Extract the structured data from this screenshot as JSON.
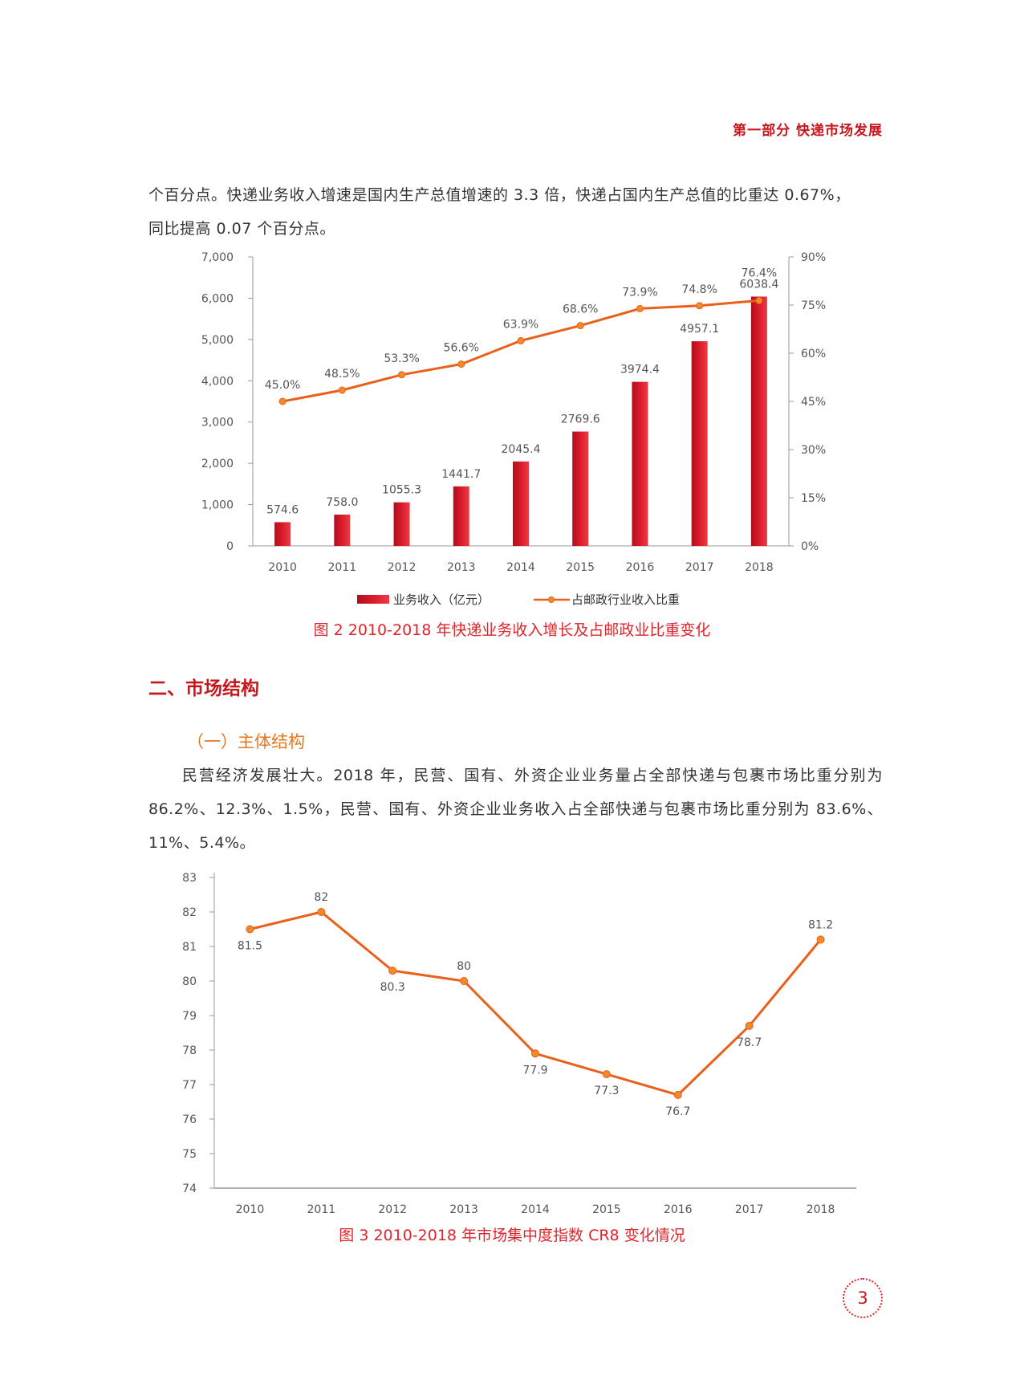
{
  "header": {
    "section": "第一部分  快递市场发展"
  },
  "intro_lines": [
    "个百分点。快递业务收入增速是国内生产总值增速的 3.3 倍，快递占国内生产总值的比重达 0.67%，",
    "同比提高 0.07 个百分点。"
  ],
  "figure2": {
    "caption": "图 2  2010-2018 年快递业务收入增长及占邮政业比重变化",
    "legend": {
      "bar": "业务收入（亿元）",
      "line": "占邮政行业收入比重"
    }
  },
  "section2": {
    "title": "二、市场结构",
    "subtitle": "（一）主体结构",
    "paragraph": "民营经济发展壮大。2018 年，民营、国有、外资企业业务量占全部快递与包裹市场比重分别为 86.2%、12.3%、1.5%，民营、国有、外资企业业务收入占全部快递与包裹市场比重分别为 83.6%、11%、5.4%。"
  },
  "figure3": {
    "caption": "图 3  2010-2018 年市场集中度指数 CR8 变化情况"
  },
  "page_number": "3",
  "colors": {
    "accent_red": "#c8161d",
    "bar_red": "#d7192a",
    "line_orange": "#e8601a"
  },
  "chart_data": [
    {
      "type": "bar+line",
      "title": "",
      "categories": [
        "2010",
        "2011",
        "2012",
        "2013",
        "2014",
        "2015",
        "2016",
        "2017",
        "2018"
      ],
      "series": [
        {
          "name": "业务收入（亿元）",
          "kind": "bar",
          "axis": "left",
          "values": [
            574.6,
            758.0,
            1055.3,
            1441.7,
            2045.4,
            2769.6,
            3974.4,
            4957.1,
            6038.4
          ],
          "labels": [
            "574.6",
            "758.0",
            "1055.3",
            "1441.7",
            "2045.4",
            "2769.6",
            "3974.4",
            "4957.1",
            "6038.4"
          ]
        },
        {
          "name": "占邮政行业收入比重",
          "kind": "line",
          "axis": "right",
          "values": [
            45.0,
            48.5,
            53.3,
            56.6,
            63.9,
            68.6,
            73.9,
            74.8,
            76.4
          ],
          "labels": [
            "45.0%",
            "48.5%",
            "53.3%",
            "56.6%",
            "63.9%",
            "68.6%",
            "73.9%",
            "74.8%",
            "76.4%"
          ]
        }
      ],
      "y_left": {
        "min": 0,
        "max": 7000,
        "ticks": [
          "0",
          "1,000",
          "2,000",
          "3,000",
          "4,000",
          "5,000",
          "6,000",
          "7,000"
        ]
      },
      "y_right": {
        "min": 0,
        "max": 90,
        "ticks": [
          "0%",
          "15%",
          "30%",
          "45%",
          "60%",
          "75%",
          "90%"
        ]
      },
      "legend_position": "bottom"
    },
    {
      "type": "line",
      "title": "",
      "categories": [
        "2010",
        "2011",
        "2012",
        "2013",
        "2014",
        "2015",
        "2016",
        "2017",
        "2018"
      ],
      "series": [
        {
          "values": [
            81.5,
            82,
            80.3,
            80,
            77.9,
            77.3,
            76.7,
            78.7,
            81.2
          ],
          "labels": [
            "81.5",
            "82",
            "80.3",
            "80",
            "77.9",
            "77.3",
            "76.7",
            "78.7",
            "81.2"
          ]
        }
      ],
      "y": {
        "min": 74,
        "max": 83,
        "ticks": [
          "74",
          "75",
          "76",
          "77",
          "78",
          "79",
          "80",
          "81",
          "82",
          "83"
        ]
      }
    }
  ]
}
